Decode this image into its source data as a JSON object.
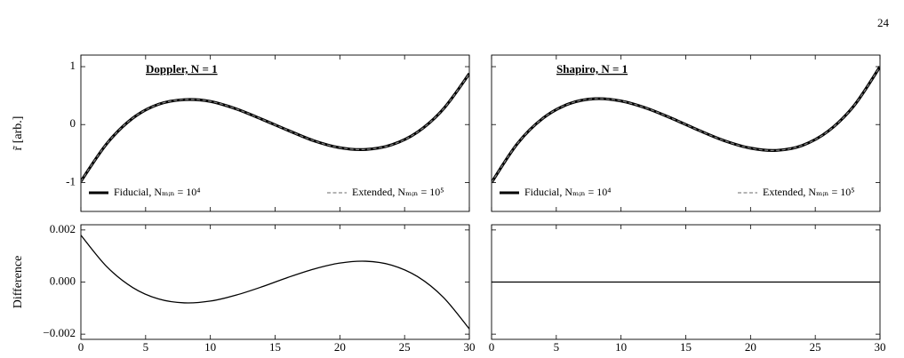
{
  "page_number": "24",
  "chart_data": [
    {
      "type": "line",
      "annotation": "Doppler, N = 1",
      "ylabel": "r̃ [arb.]",
      "x": [
        0,
        2,
        4,
        6,
        8,
        10,
        12,
        14,
        16,
        18,
        20,
        22,
        24,
        26,
        28,
        30
      ],
      "series": [
        {
          "name": "Fiducial, Nₘᵢₙ = 10⁴",
          "color": "#000000",
          "style": "solid",
          "values": [
            -0.98,
            -0.33,
            0.11,
            0.35,
            0.43,
            0.4,
            0.27,
            0.09,
            -0.1,
            -0.28,
            -0.4,
            -0.43,
            -0.35,
            -0.13,
            0.27,
            0.88
          ]
        },
        {
          "name": "Extended, Nₘᵢₙ = 10⁵",
          "color": "#888888",
          "style": "dashed",
          "values": [
            -0.98,
            -0.33,
            0.11,
            0.35,
            0.43,
            0.4,
            0.27,
            0.09,
            -0.1,
            -0.28,
            -0.4,
            -0.43,
            -0.35,
            -0.13,
            0.27,
            0.88
          ]
        }
      ],
      "xlim": [
        0,
        30
      ],
      "ylim": [
        -1.5,
        1.2
      ],
      "xticks": [
        0,
        5,
        10,
        15,
        20,
        25,
        30
      ],
      "yticks": [
        -1,
        0,
        1
      ],
      "show_xtick_labels": false,
      "show_ytick_labels": true,
      "legend": "lower"
    },
    {
      "type": "line",
      "annotation": "Shapiro, N = 1",
      "x": [
        0,
        2,
        4,
        6,
        8,
        10,
        12,
        14,
        16,
        18,
        20,
        22,
        24,
        26,
        28,
        30
      ],
      "series": [
        {
          "name": "Fiducial, Nₘᵢₙ = 10⁴",
          "color": "#000000",
          "style": "solid",
          "values": [
            -1,
            -0.328,
            0.114,
            0.36,
            0.446,
            0.407,
            0.28,
            0.099,
            -0.099,
            -0.28,
            -0.407,
            -0.446,
            -0.36,
            -0.114,
            0.328,
            1
          ]
        },
        {
          "name": "Extended, Nₘᵢₙ = 10⁵",
          "color": "#888888",
          "style": "dashed",
          "values": [
            -1,
            -0.328,
            0.114,
            0.36,
            0.446,
            0.407,
            0.28,
            0.099,
            -0.099,
            -0.28,
            -0.407,
            -0.446,
            -0.36,
            -0.114,
            0.328,
            1
          ]
        }
      ],
      "xlim": [
        0,
        30
      ],
      "ylim": [
        -1.5,
        1.2
      ],
      "xticks": [
        0,
        5,
        10,
        15,
        20,
        25,
        30
      ],
      "yticks": [
        -1,
        0,
        1
      ],
      "show_xtick_labels": false,
      "show_ytick_labels": false,
      "legend": "lower"
    },
    {
      "type": "line",
      "ylabel": "Difference",
      "x": [
        0,
        2,
        4,
        6,
        8,
        10,
        12,
        14,
        16,
        18,
        20,
        22,
        24,
        26,
        28,
        30
      ],
      "series": [
        {
          "color": "#000000",
          "style": "solid",
          "values": [
            0.0018,
            0.00059,
            -0.00021,
            -0.00065,
            -0.0008,
            -0.00073,
            -0.0005,
            -0.00018,
            0.00018,
            0.0005,
            0.00073,
            0.0008,
            0.00065,
            0.00021,
            -0.00059,
            -0.0018
          ]
        }
      ],
      "xlim": [
        0,
        30
      ],
      "ylim": [
        -0.0022,
        0.0022
      ],
      "xticks": [
        0,
        5,
        10,
        15,
        20,
        25,
        30
      ],
      "yticks": [
        {
          "value": -0.002,
          "label": "−0.002"
        },
        {
          "value": 0,
          "label": "0.000"
        },
        {
          "value": 0.002,
          "label": "0.002"
        }
      ],
      "show_xtick_labels": true,
      "show_ytick_labels": true
    },
    {
      "type": "line",
      "x": [
        0,
        2,
        4,
        6,
        8,
        10,
        12,
        14,
        16,
        18,
        20,
        22,
        24,
        26,
        28,
        30
      ],
      "series": [
        {
          "color": "#000000",
          "style": "solid",
          "values": [
            0,
            0,
            0,
            0,
            0,
            0,
            0,
            0,
            0,
            0,
            0,
            0,
            0,
            0,
            0,
            0
          ]
        }
      ],
      "xlim": [
        0,
        30
      ],
      "ylim": [
        -0.0022,
        0.0022
      ],
      "xticks": [
        0,
        5,
        10,
        15,
        20,
        25,
        30
      ],
      "yticks": [
        {
          "value": -0.002,
          "label": "−0.002"
        },
        {
          "value": 0,
          "label": "0.000"
        },
        {
          "value": 0.002,
          "label": "0.002"
        }
      ],
      "show_xtick_labels": true,
      "show_ytick_labels": false
    }
  ]
}
